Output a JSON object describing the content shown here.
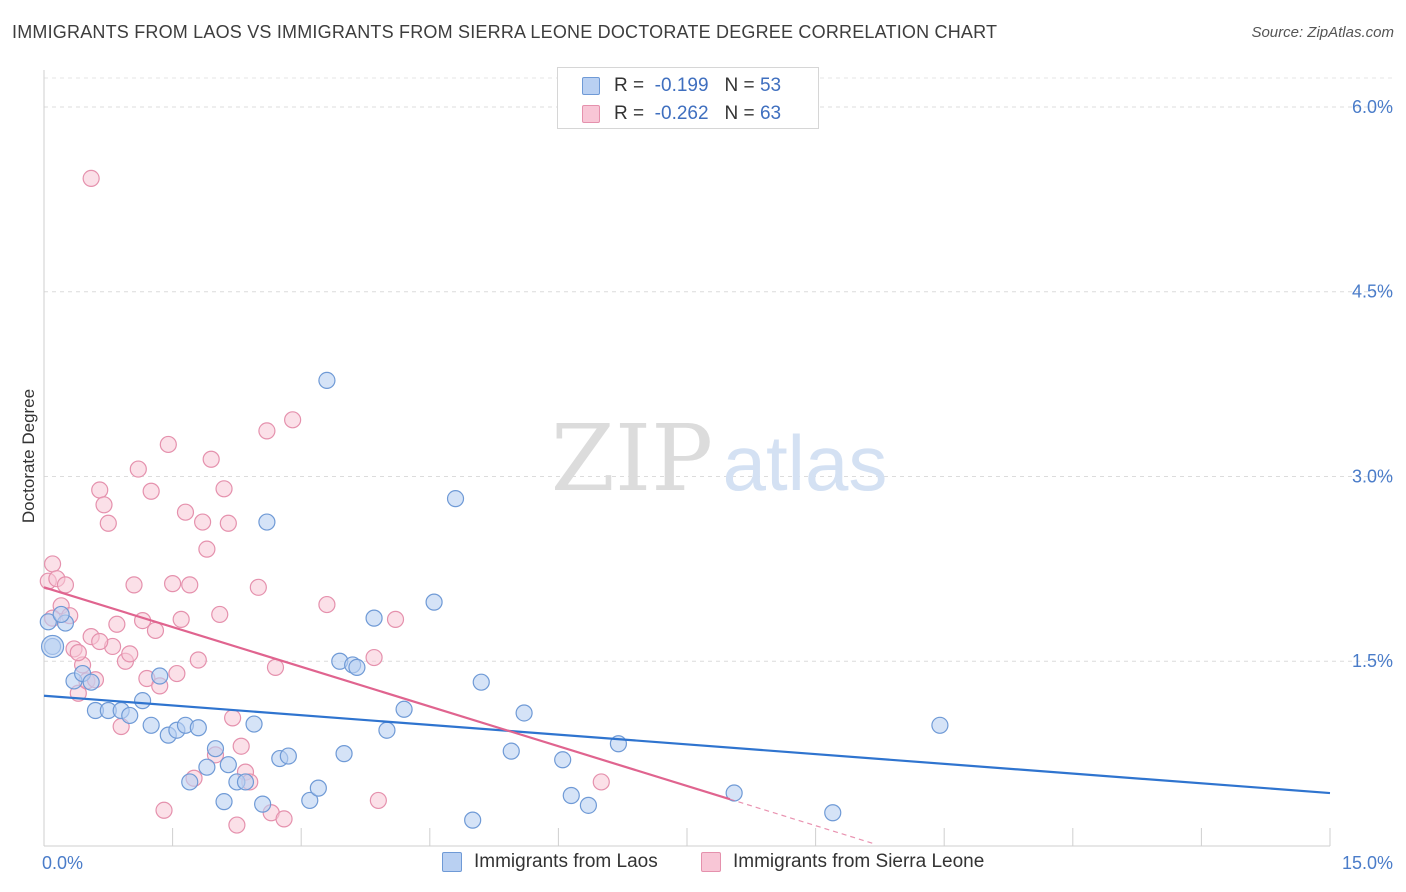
{
  "title": "IMMIGRANTS FROM LAOS VS IMMIGRANTS FROM SIERRA LEONE DOCTORATE DEGREE CORRELATION CHART",
  "source": "Source: ZipAtlas.com",
  "watermark": {
    "zip": "ZIP",
    "atlas": "atlas"
  },
  "legend": {
    "rows": [
      {
        "r_label": "R =",
        "r_value": "-0.199",
        "n_label": "N =",
        "n_value": "53"
      },
      {
        "r_label": "R =",
        "r_value": "-0.262",
        "n_label": "N =",
        "n_value": "63"
      }
    ]
  },
  "chart_data": {
    "type": "scatter",
    "ylabel": "Doctorate Degree",
    "xlim": [
      0,
      15
    ],
    "ylim": [
      0,
      6.3
    ],
    "x_tick_labels": [
      "0.0%",
      "15.0%"
    ],
    "y_ticks": [
      1.5,
      3.0,
      4.5,
      6.0
    ],
    "y_tick_labels": [
      "1.5%",
      "3.0%",
      "4.5%",
      "6.0%"
    ],
    "grid": "horizontal dashed",
    "colors": {
      "laos_fill": "#b9d0f2",
      "laos_stroke": "#6f9ad6",
      "laos_line": "#2f74cf",
      "sl_fill": "#f8c6d6",
      "sl_stroke": "#e591ad",
      "sl_line": "#e0648f"
    },
    "series": [
      {
        "name": "Immigrants from Laos",
        "trend": {
          "x0": 0.0,
          "y0": 1.22,
          "x1": 15.0,
          "y1": 0.43
        },
        "points": [
          [
            0.05,
            1.82
          ],
          [
            0.1,
            1.62
          ],
          [
            0.25,
            1.81
          ],
          [
            0.35,
            1.34
          ],
          [
            0.45,
            1.4
          ],
          [
            0.55,
            1.33
          ],
          [
            0.6,
            1.1
          ],
          [
            0.75,
            1.1
          ],
          [
            0.9,
            1.1
          ],
          [
            1.0,
            1.06
          ],
          [
            1.15,
            1.18
          ],
          [
            1.25,
            0.98
          ],
          [
            1.35,
            1.38
          ],
          [
            1.45,
            0.9
          ],
          [
            1.55,
            0.94
          ],
          [
            1.65,
            0.98
          ],
          [
            1.7,
            0.52
          ],
          [
            1.8,
            0.96
          ],
          [
            1.9,
            0.64
          ],
          [
            2.0,
            0.79
          ],
          [
            2.1,
            0.36
          ],
          [
            2.15,
            0.66
          ],
          [
            2.25,
            0.52
          ],
          [
            2.35,
            0.52
          ],
          [
            2.45,
            0.99
          ],
          [
            2.55,
            0.34
          ],
          [
            2.6,
            2.63
          ],
          [
            2.75,
            0.71
          ],
          [
            2.85,
            0.73
          ],
          [
            3.1,
            0.37
          ],
          [
            3.2,
            0.47
          ],
          [
            3.3,
            3.78
          ],
          [
            3.45,
            1.5
          ],
          [
            3.5,
            0.75
          ],
          [
            3.6,
            1.47
          ],
          [
            3.65,
            1.45
          ],
          [
            3.85,
            1.85
          ],
          [
            4.0,
            0.94
          ],
          [
            4.2,
            1.11
          ],
          [
            4.55,
            1.98
          ],
          [
            4.8,
            2.82
          ],
          [
            5.0,
            0.21
          ],
          [
            5.1,
            1.33
          ],
          [
            5.45,
            0.77
          ],
          [
            5.6,
            1.08
          ],
          [
            6.05,
            0.7
          ],
          [
            6.15,
            0.41
          ],
          [
            6.35,
            0.33
          ],
          [
            6.7,
            0.83
          ],
          [
            8.05,
            0.43
          ],
          [
            9.2,
            0.27
          ],
          [
            10.45,
            0.98
          ],
          [
            0.2,
            1.88
          ]
        ]
      },
      {
        "name": "Immigrants from Sierra Leone",
        "trend": {
          "x0": 0.0,
          "y0": 2.1,
          "x1": 8.0,
          "y1": 0.38,
          "dash_to_x": 9.7
        },
        "points": [
          [
            0.05,
            2.15
          ],
          [
            0.1,
            2.29
          ],
          [
            0.15,
            2.17
          ],
          [
            0.2,
            1.95
          ],
          [
            0.25,
            2.12
          ],
          [
            0.3,
            1.87
          ],
          [
            0.35,
            1.6
          ],
          [
            0.4,
            1.24
          ],
          [
            0.45,
            1.47
          ],
          [
            0.5,
            1.34
          ],
          [
            0.55,
            1.7
          ],
          [
            0.6,
            1.35
          ],
          [
            0.65,
            2.89
          ],
          [
            0.7,
            2.77
          ],
          [
            0.75,
            2.62
          ],
          [
            0.8,
            1.62
          ],
          [
            0.85,
            1.8
          ],
          [
            0.9,
            0.97
          ],
          [
            0.95,
            1.5
          ],
          [
            1.0,
            1.56
          ],
          [
            1.05,
            2.12
          ],
          [
            1.1,
            3.06
          ],
          [
            1.15,
            1.83
          ],
          [
            1.2,
            1.36
          ],
          [
            1.25,
            2.88
          ],
          [
            1.3,
            1.75
          ],
          [
            1.35,
            1.3
          ],
          [
            1.4,
            0.29
          ],
          [
            1.45,
            3.26
          ],
          [
            1.5,
            2.13
          ],
          [
            1.55,
            1.4
          ],
          [
            1.6,
            1.84
          ],
          [
            1.65,
            2.71
          ],
          [
            1.7,
            2.12
          ],
          [
            1.75,
            0.55
          ],
          [
            1.8,
            1.51
          ],
          [
            1.85,
            2.63
          ],
          [
            1.9,
            2.41
          ],
          [
            1.95,
            3.14
          ],
          [
            2.0,
            0.74
          ],
          [
            2.05,
            1.88
          ],
          [
            2.1,
            2.9
          ],
          [
            2.15,
            2.62
          ],
          [
            2.2,
            1.04
          ],
          [
            2.25,
            0.17
          ],
          [
            2.3,
            0.81
          ],
          [
            2.35,
            0.6
          ],
          [
            2.4,
            0.52
          ],
          [
            2.5,
            2.1
          ],
          [
            2.6,
            3.37
          ],
          [
            2.65,
            0.27
          ],
          [
            2.7,
            1.45
          ],
          [
            2.8,
            0.22
          ],
          [
            2.9,
            3.46
          ],
          [
            3.3,
            1.96
          ],
          [
            3.85,
            1.53
          ],
          [
            3.9,
            0.37
          ],
          [
            4.1,
            1.84
          ],
          [
            6.5,
            0.52
          ],
          [
            0.55,
            5.42
          ],
          [
            0.1,
            1.85
          ],
          [
            0.4,
            1.57
          ],
          [
            0.65,
            1.66
          ]
        ]
      }
    ]
  },
  "bottom_legend": [
    {
      "label": "Immigrants from Laos"
    },
    {
      "label": "Immigrants from Sierra Leone"
    }
  ]
}
